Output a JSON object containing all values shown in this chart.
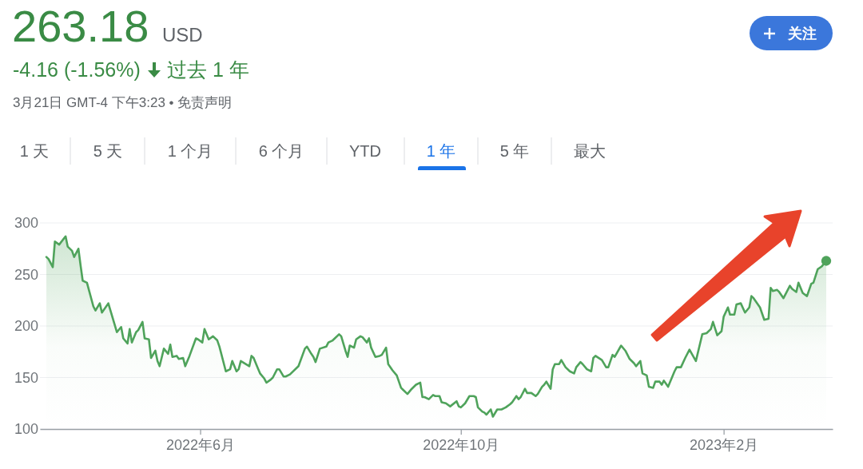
{
  "chart_data": {
    "type": "area",
    "title": "263.18",
    "annotations": [
      "USD",
      "-4.16 (-1.56%)",
      "过去 1 年",
      "3月21日 GMT-4 下午3:23 • 免责声明",
      "1 天",
      "5 天",
      "1 个月",
      "6 个月",
      "YTD",
      "1 年",
      "5 年",
      "最大",
      "关注"
    ],
    "x": [
      "2022-03-21",
      "2022-03-22",
      "2022-03-24",
      "2022-03-25",
      "2022-03-27",
      "2022-03-30",
      "2022-03-31",
      "2022-04-02",
      "2022-04-03",
      "2022-04-05",
      "2022-04-06",
      "2022-04-07",
      "2022-04-09",
      "2022-04-12",
      "2022-04-13",
      "2022-04-15",
      "2022-04-16",
      "2022-04-19",
      "2022-04-20",
      "2022-04-22",
      "2022-04-23",
      "2022-04-25",
      "2022-04-26",
      "2022-04-28",
      "2022-04-29",
      "2022-04-30",
      "2022-05-02",
      "2022-05-03",
      "2022-05-05",
      "2022-05-06",
      "2022-05-08",
      "2022-05-09",
      "2022-05-11",
      "2022-05-12",
      "2022-05-13",
      "2022-05-15",
      "2022-05-17",
      "2022-05-18",
      "2022-05-19",
      "2022-05-21",
      "2022-05-22",
      "2022-05-24",
      "2022-05-25",
      "2022-05-27",
      "2022-05-30",
      "2022-05-31",
      "2022-06-02",
      "2022-06-03",
      "2022-06-05",
      "2022-06-07",
      "2022-06-09",
      "2022-06-10",
      "2022-06-13",
      "2022-06-15",
      "2022-06-16",
      "2022-06-18",
      "2022-06-19",
      "2022-06-20",
      "2022-06-24",
      "2022-06-25",
      "2022-06-26",
      "2022-06-28",
      "2022-06-29",
      "2022-07-01",
      "2022-07-02",
      "2022-07-04",
      "2022-07-05",
      "2022-07-07",
      "2022-07-08",
      "2022-07-10",
      "2022-07-11",
      "2022-07-13",
      "2022-07-17",
      "2022-07-20",
      "2022-07-21",
      "2022-07-23",
      "2022-07-24",
      "2022-07-25",
      "2022-07-27",
      "2022-07-30",
      "2022-07-31",
      "2022-08-02",
      "2022-08-05",
      "2022-08-06",
      "2022-08-08",
      "2022-08-09",
      "2022-08-10",
      "2022-08-12",
      "2022-08-13",
      "2022-08-15",
      "2022-08-16",
      "2022-08-18",
      "2022-08-19",
      "2022-08-20",
      "2022-08-22",
      "2022-08-24",
      "2022-08-25",
      "2022-08-27",
      "2022-08-28",
      "2022-08-30",
      "2022-09-01",
      "2022-09-03",
      "2022-09-04",
      "2022-09-06",
      "2022-09-08",
      "2022-09-10",
      "2022-09-12",
      "2022-09-13",
      "2022-09-14",
      "2022-09-16",
      "2022-09-18",
      "2022-09-19",
      "2022-09-21",
      "2022-09-22",
      "2022-09-24",
      "2022-09-26",
      "2022-09-29",
      "2022-09-30",
      "2022-10-01",
      "2022-10-03",
      "2022-10-05",
      "2022-10-07",
      "2022-10-08",
      "2022-10-09",
      "2022-10-11",
      "2022-10-12",
      "2022-10-13",
      "2022-10-15",
      "2022-10-16",
      "2022-10-18",
      "2022-10-20",
      "2022-10-22",
      "2022-10-24",
      "2022-10-25",
      "2022-10-27",
      "2022-10-28",
      "2022-10-29",
      "2022-10-31",
      "2022-11-01",
      "2022-11-03",
      "2022-11-05",
      "2022-11-06",
      "2022-11-08",
      "2022-11-09",
      "2022-11-10",
      "2022-11-12",
      "2022-11-13",
      "2022-11-14",
      "2022-11-16",
      "2022-11-17",
      "2022-11-19",
      "2022-11-21",
      "2022-11-23",
      "2022-11-24",
      "2022-11-26",
      "2022-11-27",
      "2022-11-29",
      "2022-12-01",
      "2022-12-02",
      "2022-12-03",
      "2022-12-06",
      "2022-12-08",
      "2022-12-09",
      "2022-12-11",
      "2022-12-12",
      "2022-12-15",
      "2022-12-17",
      "2022-12-19",
      "2022-12-21",
      "2022-12-22",
      "2022-12-24",
      "2022-12-25",
      "2022-12-27",
      "2022-12-28",
      "2022-12-30",
      "2022-12-31",
      "2023-01-02",
      "2023-01-03",
      "2023-01-04",
      "2023-01-06",
      "2023-01-09",
      "2023-01-10",
      "2023-01-12",
      "2023-01-14",
      "2023-01-16",
      "2023-01-19",
      "2023-01-22",
      "2023-01-24",
      "2023-01-26",
      "2023-01-27",
      "2023-01-29",
      "2023-01-31",
      "2023-02-01",
      "2023-02-03",
      "2023-02-04",
      "2023-02-06",
      "2023-02-07",
      "2023-02-09",
      "2023-02-11",
      "2023-02-13",
      "2023-02-14",
      "2023-02-15",
      "2023-02-18",
      "2023-02-20",
      "2023-02-22",
      "2023-02-23",
      "2023-02-24",
      "2023-02-26",
      "2023-02-27",
      "2023-03-01",
      "2023-03-04",
      "2023-03-05",
      "2023-03-07",
      "2023-03-08",
      "2023-03-10",
      "2023-03-12",
      "2023-03-14",
      "2023-03-15",
      "2023-03-17",
      "2023-03-19",
      "2023-03-21"
    ],
    "xlim": [
      "2022-03-18",
      "2023-03-24"
    ],
    "xticks": [
      {
        "value": "2022-06-01",
        "label": "2022年6月"
      },
      {
        "value": "2022-10-01",
        "label": "2022年10月"
      },
      {
        "value": "2023-02-01",
        "label": "2023年2月"
      }
    ],
    "ylim": [
      100,
      300
    ],
    "yticks": [
      100,
      150,
      200,
      250,
      300
    ],
    "grid": "y",
    "series": [
      {
        "color": "#4fa35b",
        "values": [
          267,
          265,
          257,
          282,
          279,
          287,
          277,
          273,
          267,
          275,
          259,
          244,
          242,
          219,
          215,
          222,
          213,
          222,
          215,
          201,
          194,
          199,
          188,
          183,
          197,
          184,
          194,
          196,
          204,
          188,
          187,
          169,
          176,
          166,
          161,
          178,
          173,
          182,
          170,
          171,
          168,
          169,
          161,
          171,
          188,
          187,
          184,
          197,
          187,
          190,
          186,
          180,
          156,
          158,
          166,
          156,
          158,
          166,
          161,
          171,
          169,
          159,
          154,
          149,
          145,
          148,
          150,
          158,
          158,
          151,
          151,
          153,
          161,
          178,
          180,
          173,
          170,
          165,
          178,
          180,
          184,
          186,
          192,
          190,
          176,
          170,
          181,
          179,
          187,
          190,
          189,
          184,
          188,
          179,
          170,
          171,
          172,
          179,
          163,
          157,
          152,
          140,
          138,
          134,
          139,
          143,
          145,
          131,
          131,
          129,
          133,
          132,
          132,
          126,
          125,
          122,
          127,
          122,
          121,
          125,
          132,
          132,
          131,
          121,
          117,
          116,
          114,
          119,
          112,
          119,
          119,
          121,
          124,
          126,
          132,
          129,
          131,
          139,
          135,
          135,
          132,
          134,
          141,
          143,
          146,
          139,
          158,
          163,
          163,
          167,
          160,
          156,
          154,
          160,
          165,
          163,
          158,
          156,
          169,
          171,
          167,
          160,
          160,
          172,
          170,
          181,
          176,
          168,
          164,
          161,
          166,
          154,
          152,
          141,
          140,
          146,
          146,
          143,
          147,
          141,
          156,
          160,
          160,
          169,
          177,
          166,
          192,
          193,
          197,
          204,
          191,
          195,
          209,
          218,
          211,
          211,
          221,
          222,
          213,
          218,
          229,
          227,
          218,
          206,
          207,
          237,
          234,
          235,
          233,
          227,
          239,
          236,
          233,
          242,
          232,
          229,
          241,
          242,
          255,
          258,
          263.18
        ]
      },
      {
        "type": "scatter",
        "color": "#4fa35b",
        "marker": "circle",
        "x": [
          "2023-03-21"
        ],
        "values": [
          263.18
        ]
      }
    ]
  }
}
